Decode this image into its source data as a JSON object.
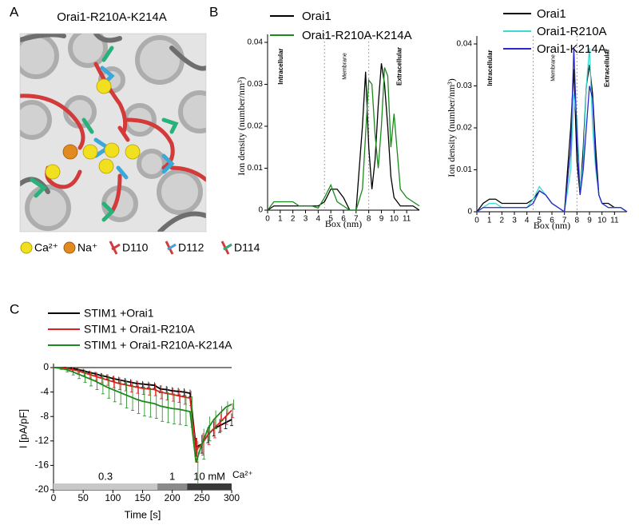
{
  "panel_labels": [
    "A",
    "B",
    "C"
  ],
  "panel_a": {
    "title": "Orai1-R210A-K214A",
    "legend": [
      "Ca²⁺",
      "Na⁺",
      "D110",
      "D112",
      "D114"
    ]
  },
  "chart_data": [
    {
      "type": "line",
      "xlabel": "Box (nm)",
      "ylabel": "Ion density (number/nm³)",
      "x": [
        0,
        0.5,
        1,
        1.5,
        2,
        2.5,
        3,
        3.5,
        4,
        4.5,
        5,
        5.5,
        6,
        6.5,
        7,
        7.5,
        7.75,
        8,
        8.25,
        8.5,
        8.75,
        9,
        9.25,
        9.5,
        9.75,
        10,
        10.5,
        11,
        11.5,
        12
      ],
      "xlim": [
        0,
        12
      ],
      "xticks": [
        0,
        1,
        2,
        3,
        4,
        5,
        6,
        7,
        8,
        9,
        10,
        11
      ],
      "ylim": [
        0,
        0.04
      ],
      "yticks": [
        0,
        0.01,
        0.02,
        0.03,
        0.04
      ],
      "vlines": [
        4.5,
        8
      ],
      "regions": [
        "Intracellular",
        "Membrane",
        "Extracellular"
      ],
      "series": [
        {
          "name": "Orai1",
          "color": "#000000",
          "values": [
            0,
            0.001,
            0.001,
            0.001,
            0.001,
            0.001,
            0.001,
            0.001,
            0.001,
            0.002,
            0.005,
            0.005,
            0.003,
            0,
            0,
            0.02,
            0.033,
            0.015,
            0.005,
            0.012,
            0.025,
            0.035,
            0.03,
            0.02,
            0.008,
            0.003,
            0.001,
            0.001,
            0.001,
            0
          ]
        },
        {
          "name": "Orai1-R210A-K214A",
          "color": "#1a8a1a",
          "values": [
            0,
            0.002,
            0.002,
            0.002,
            0.002,
            0.001,
            0.001,
            0.001,
            0.0005,
            0.003,
            0.006,
            0.002,
            0.001,
            0,
            0,
            0.005,
            0.018,
            0.031,
            0.03,
            0.018,
            0.01,
            0.02,
            0.034,
            0.032,
            0.015,
            0.023,
            0.005,
            0.003,
            0.002,
            0.001
          ]
        }
      ]
    },
    {
      "type": "line",
      "xlabel": "Box (nm)",
      "ylabel": "Ion density (number/nm³)",
      "x": [
        0,
        0.5,
        1,
        1.5,
        2,
        2.5,
        3,
        3.5,
        4,
        4.5,
        5,
        5.5,
        6,
        6.5,
        7,
        7.5,
        7.75,
        8,
        8.25,
        8.5,
        8.75,
        9,
        9.25,
        9.5,
        9.75,
        10,
        10.5,
        11,
        11.5,
        12
      ],
      "xlim": [
        0,
        12
      ],
      "xticks": [
        0,
        1,
        2,
        3,
        4,
        5,
        6,
        7,
        8,
        9,
        10,
        11
      ],
      "ylim": [
        0,
        0.04
      ],
      "yticks": [
        0,
        0.01,
        0.02,
        0.03,
        0.04
      ],
      "vlines": [
        4.5,
        8
      ],
      "regions": [
        "Intracellular",
        "Membrane",
        "Extracellular"
      ],
      "series": [
        {
          "name": "Orai1",
          "color": "#000000",
          "values": [
            0,
            0.002,
            0.003,
            0.003,
            0.002,
            0.002,
            0.002,
            0.002,
            0.002,
            0.003,
            0.005,
            0.004,
            0.002,
            0.001,
            0,
            0.02,
            0.034,
            0.012,
            0.004,
            0.015,
            0.03,
            0.035,
            0.028,
            0.015,
            0.004,
            0.002,
            0.002,
            0.001,
            0.001,
            0
          ]
        },
        {
          "name": "Orai1-R210A",
          "color": "#40d8d0",
          "values": [
            0,
            0.001,
            0.002,
            0.002,
            0.001,
            0.001,
            0.001,
            0.001,
            0.001,
            0.003,
            0.006,
            0.004,
            0.002,
            0.001,
            0,
            0.01,
            0.028,
            0.022,
            0.005,
            0.012,
            0.03,
            0.039,
            0.02,
            0.01,
            0.004,
            0.002,
            0.001,
            0.001,
            0.001,
            0
          ]
        },
        {
          "name": "Orai1-K214A",
          "color": "#2a2acc",
          "values": [
            0,
            0.001,
            0.001,
            0.001,
            0.001,
            0.001,
            0.001,
            0.001,
            0.001,
            0.002,
            0.005,
            0.004,
            0.002,
            0.001,
            0,
            0.015,
            0.039,
            0.018,
            0.004,
            0.01,
            0.02,
            0.03,
            0.027,
            0.012,
            0.004,
            0.002,
            0.001,
            0.001,
            0.001,
            0
          ]
        }
      ]
    },
    {
      "type": "line",
      "xlabel": "Time [s]",
      "ylabel": "I [pA/pF]",
      "x": [
        0,
        10,
        20,
        30,
        40,
        50,
        60,
        70,
        80,
        90,
        100,
        110,
        120,
        130,
        140,
        150,
        160,
        170,
        180,
        190,
        200,
        210,
        220,
        230,
        240,
        250,
        260,
        270,
        280,
        290,
        300
      ],
      "xlim": [
        0,
        300
      ],
      "xticks": [
        0,
        50,
        100,
        150,
        200,
        250,
        300
      ],
      "ylim": [
        -20,
        0
      ],
      "yticks": [
        0,
        -4,
        -8,
        -12,
        -16,
        -20
      ],
      "stimulus": [
        {
          "label": "0.3",
          "start": 0,
          "end": 175,
          "color": "#c8c8c8"
        },
        {
          "label": "1",
          "start": 175,
          "end": 225,
          "color": "#8a8a8a"
        },
        {
          "label": "10 mM",
          "start": 225,
          "end": 300,
          "color": "#3a3a3a"
        }
      ],
      "stimulus_unit": "Ca²⁺",
      "series": [
        {
          "name": "STIM1 +Orai1",
          "color": "#000000",
          "values": [
            0,
            0,
            0,
            -0.1,
            -0.3,
            -0.5,
            -0.8,
            -1,
            -1.3,
            -1.5,
            -1.8,
            -2,
            -2.2,
            -2.4,
            -2.6,
            -2.7,
            -2.8,
            -2.9,
            -3.5,
            -3.6,
            -3.8,
            -3.9,
            -4,
            -4.2,
            -13,
            -12.5,
            -11,
            -10,
            -9.5,
            -9,
            -8.5
          ],
          "errors": [
            0,
            0.1,
            0.1,
            0.2,
            0.2,
            0.3,
            0.3,
            0.3,
            0.4,
            0.4,
            0.4,
            0.5,
            0.5,
            0.5,
            0.5,
            0.5,
            0.5,
            0.5,
            0.6,
            0.6,
            0.6,
            0.6,
            0.6,
            0.6,
            1.5,
            1.5,
            1.3,
            1.2,
            1.1,
            1,
            1
          ]
        },
        {
          "name": "STIM1 + Orai1-R210A",
          "color": "#e02020",
          "values": [
            0,
            0,
            -0.1,
            -0.3,
            -0.5,
            -0.8,
            -1.1,
            -1.4,
            -1.7,
            -2,
            -2.3,
            -2.6,
            -2.8,
            -3,
            -3.2,
            -3.4,
            -3.5,
            -3.6,
            -4,
            -4.2,
            -4.4,
            -4.6,
            -4.8,
            -5,
            -13.5,
            -12.5,
            -11,
            -10,
            -9,
            -8,
            -7
          ],
          "errors": [
            0,
            0.1,
            0.2,
            0.3,
            0.4,
            0.5,
            0.6,
            0.7,
            0.8,
            0.9,
            1,
            1,
            1,
            1,
            1,
            1,
            1,
            1,
            1.1,
            1.1,
            1.1,
            1.1,
            1.2,
            1.2,
            2,
            1.8,
            1.6,
            1.5,
            1.4,
            1.3,
            1.2
          ]
        },
        {
          "name": "STIM1 + Orai1-R210A-K214A",
          "color": "#1a8a1a",
          "values": [
            0,
            -0.1,
            -0.3,
            -0.6,
            -1,
            -1.4,
            -1.8,
            -2.2,
            -2.7,
            -3.2,
            -3.6,
            -4,
            -4.4,
            -4.8,
            -5.2,
            -5.5,
            -5.7,
            -5.9,
            -6.3,
            -6.5,
            -6.7,
            -6.8,
            -7,
            -7.2,
            -15.5,
            -12.5,
            -10,
            -8.5,
            -7.5,
            -6.5,
            -6
          ],
          "errors": [
            0,
            0.2,
            0.4,
            0.6,
            0.8,
            1,
            1.2,
            1.4,
            1.6,
            1.8,
            2,
            2,
            2.2,
            2.2,
            2.3,
            2.4,
            2.4,
            2.4,
            2.5,
            2.5,
            2.5,
            2.5,
            2.5,
            2.5,
            3.5,
            2.5,
            2,
            1.5,
            1.2,
            1,
            0.8
          ]
        }
      ]
    }
  ]
}
